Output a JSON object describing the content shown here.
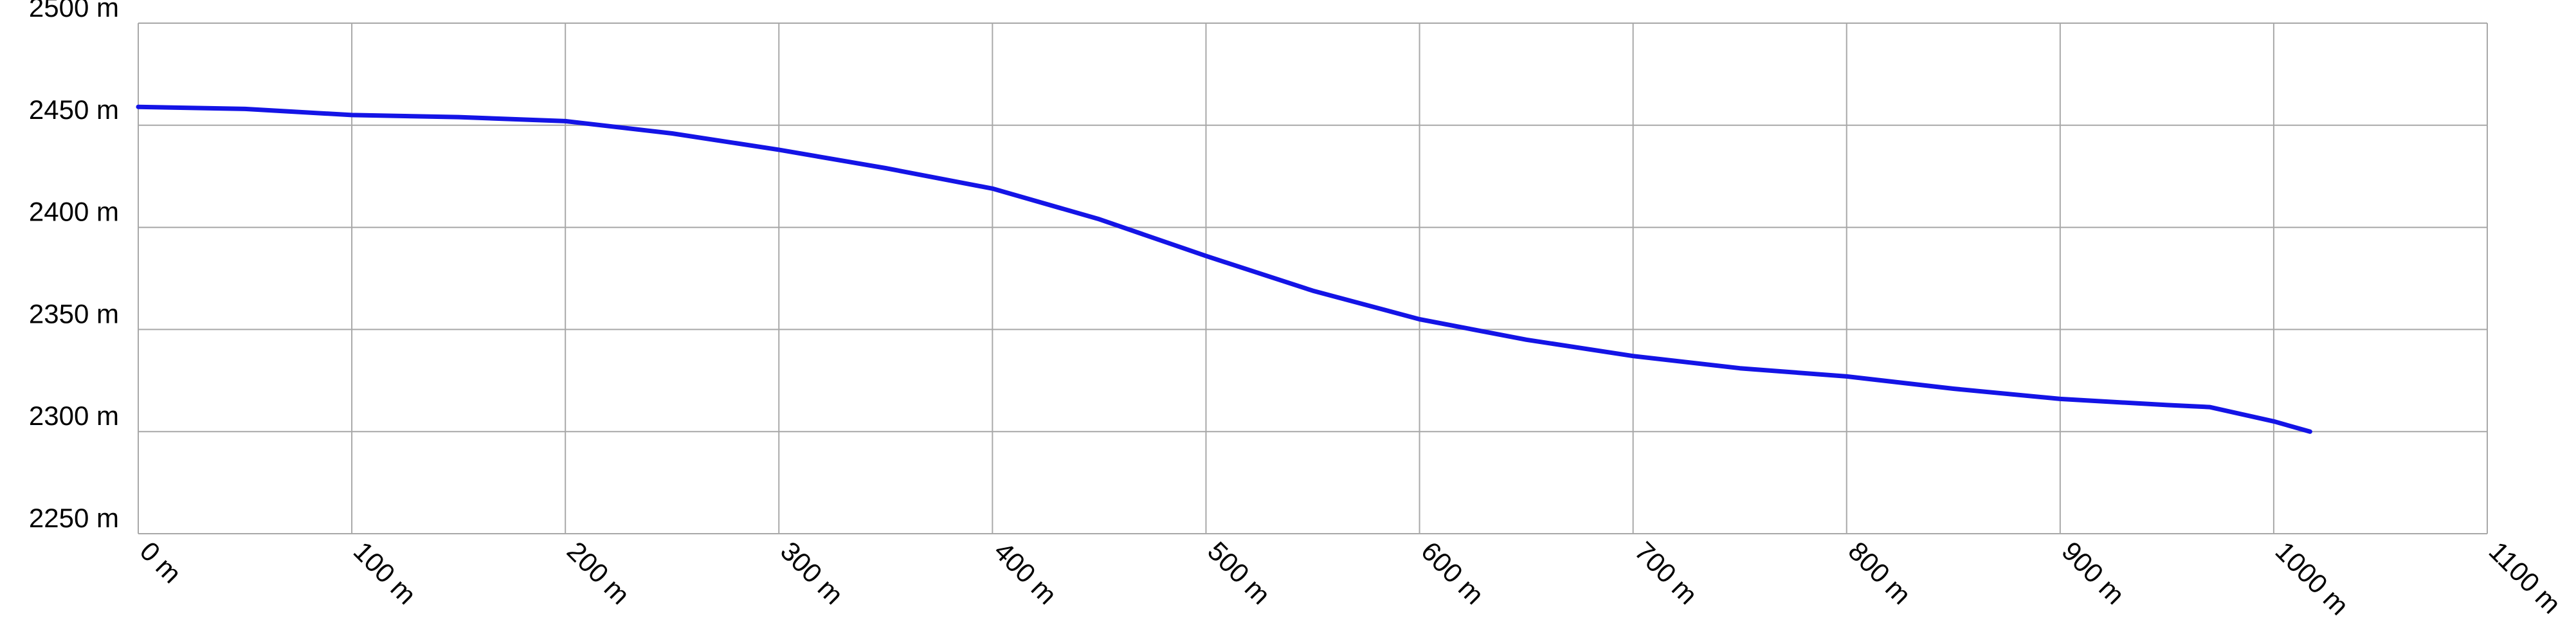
{
  "chart_data": {
    "type": "line",
    "x": [
      0,
      50,
      100,
      150,
      200,
      250,
      300,
      350,
      400,
      450,
      500,
      550,
      600,
      650,
      700,
      750,
      800,
      850,
      900,
      950,
      970,
      1000,
      1017
    ],
    "series": [
      {
        "color": "#1414e6",
        "values": [
          2459,
          2458,
          2455,
          2454,
          2452,
          2446,
          2438,
          2429,
          2419,
          2404,
          2386,
          2369,
          2355,
          2345,
          2337,
          2331,
          2327,
          2321,
          2316,
          2313,
          2312,
          2305,
          2300
        ]
      }
    ],
    "xlim": [
      0,
      1100
    ],
    "xticks": [
      {
        "value": 0,
        "label": "0 m"
      },
      {
        "value": 100,
        "label": "100 m"
      },
      {
        "value": 200,
        "label": "200 m"
      },
      {
        "value": 300,
        "label": "300 m"
      },
      {
        "value": 400,
        "label": "400 m"
      },
      {
        "value": 500,
        "label": "500 m"
      },
      {
        "value": 600,
        "label": "600 m"
      },
      {
        "value": 700,
        "label": "700 m"
      },
      {
        "value": 800,
        "label": "800 m"
      },
      {
        "value": 900,
        "label": "900 m"
      },
      {
        "value": 1000,
        "label": "1000 m"
      },
      {
        "value": 1100,
        "label": "1100 m"
      }
    ],
    "ylim": [
      2250,
      2500
    ],
    "yticks": [
      {
        "value": 2250,
        "label": "2250 m"
      },
      {
        "value": 2300,
        "label": "2300 m"
      },
      {
        "value": 2350,
        "label": "2350 m"
      },
      {
        "value": 2400,
        "label": "2400 m"
      },
      {
        "value": 2450,
        "label": "2450 m"
      },
      {
        "value": 2500,
        "label": "2500 m"
      }
    ],
    "grid": true
  }
}
